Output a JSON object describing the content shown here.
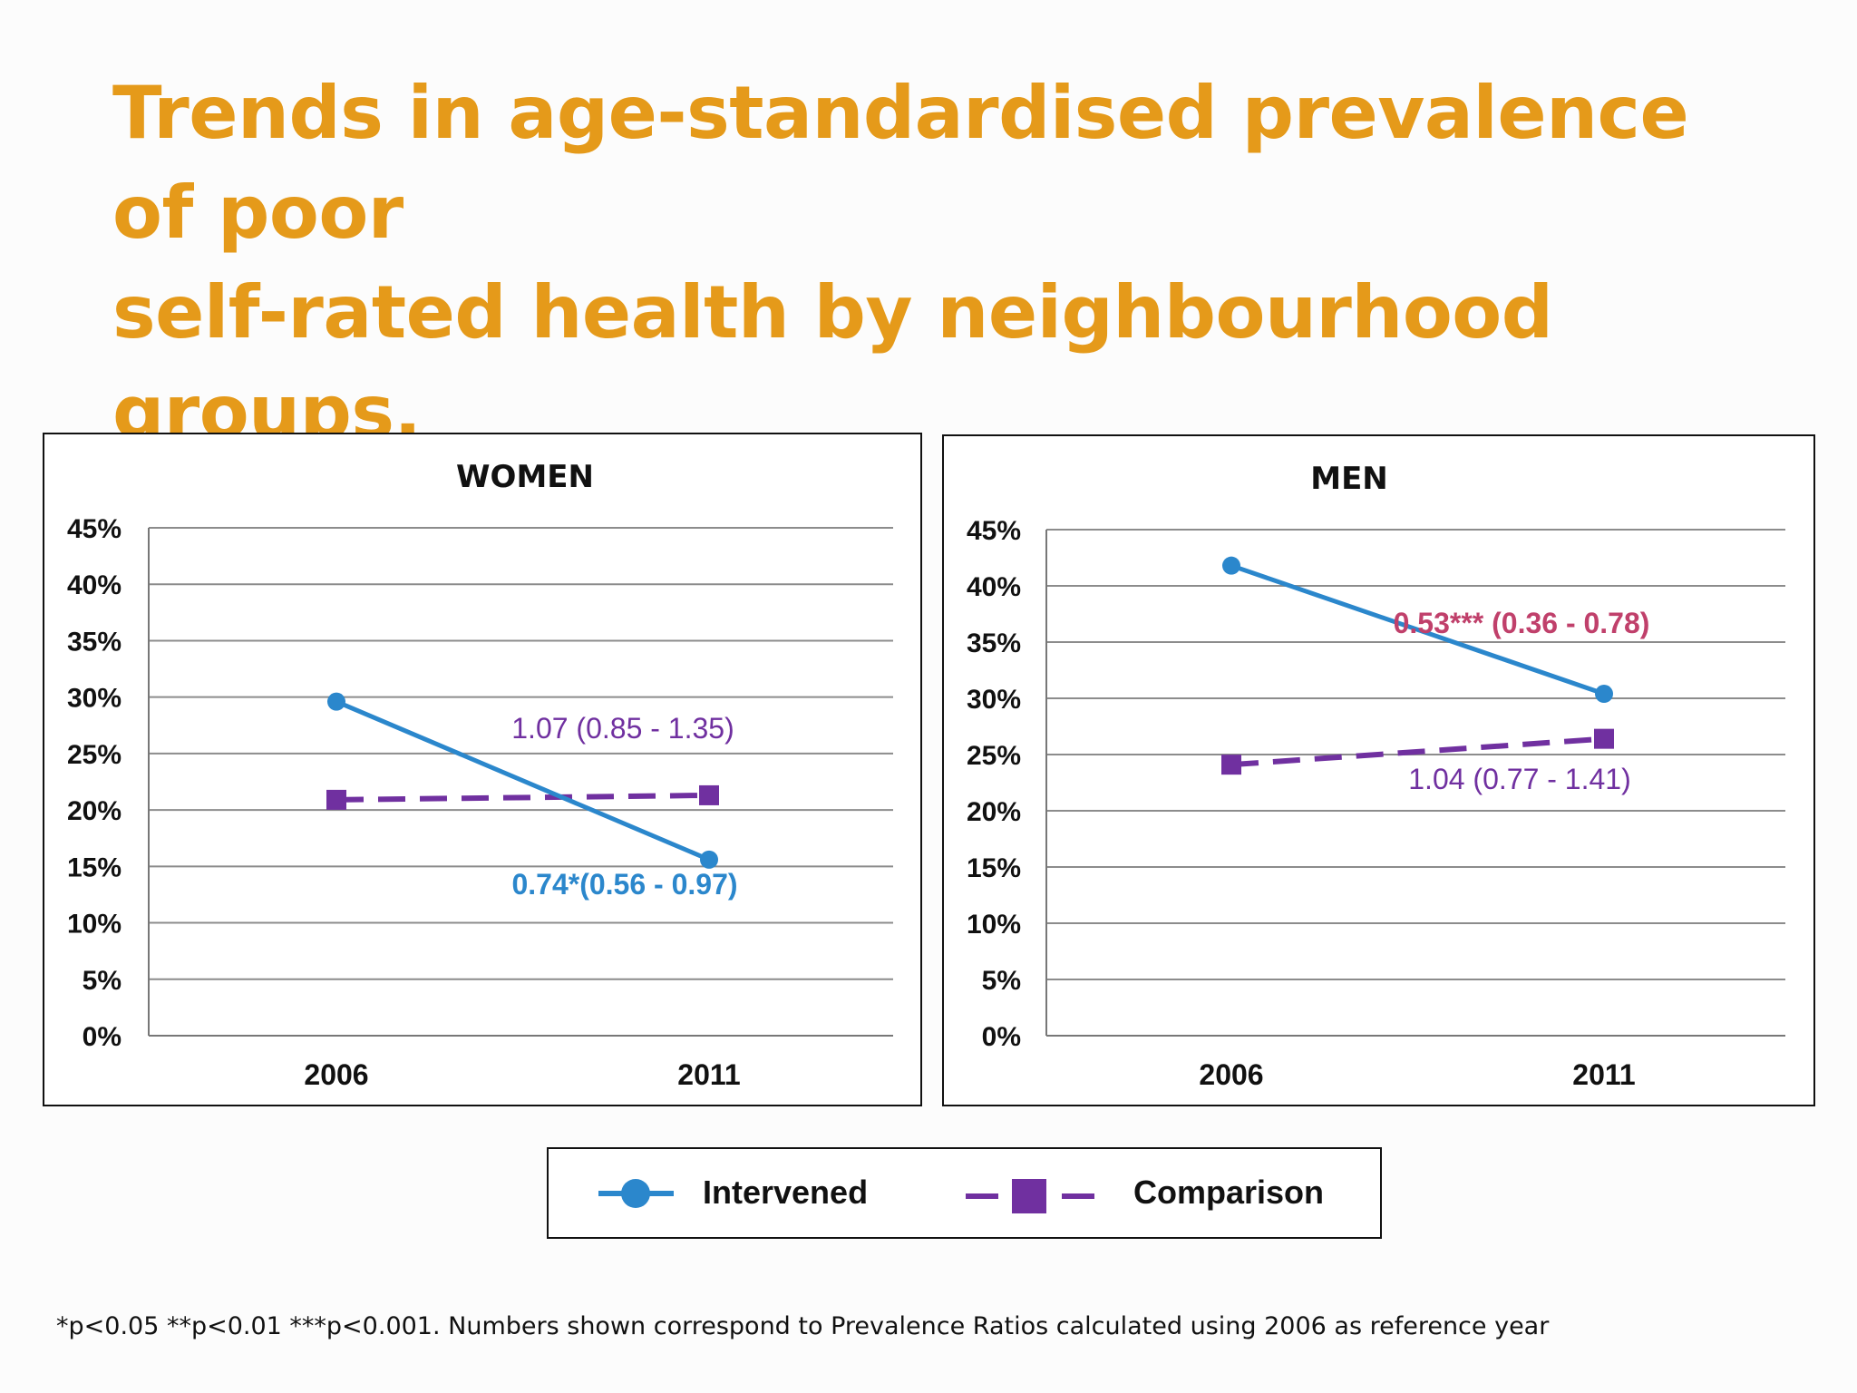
{
  "title": {
    "line1": "Trends in age-standardised prevalence of poor",
    "line2": "self-rated health by neighbourhood groups."
  },
  "colors": {
    "title": "#E59A1A",
    "intervened": "#2B87CC",
    "comparison": "#7030A0",
    "men_intervened_label": "#C0406B",
    "grid": "#8c8c8c"
  },
  "chart_data": [
    {
      "type": "line",
      "title": "WOMEN",
      "categories": [
        "2006",
        "2011"
      ],
      "ylim": [
        0,
        45
      ],
      "yticks": [
        "0%",
        "5%",
        "10%",
        "15%",
        "20%",
        "25%",
        "30%",
        "35%",
        "40%",
        "45%"
      ],
      "grid": true,
      "series": [
        {
          "name": "Intervened",
          "values": [
            29.6,
            15.6
          ],
          "label": "0.74*(0.56 - 0.97)"
        },
        {
          "name": "Comparison",
          "values": [
            20.9,
            21.3
          ],
          "label": "1.07 (0.85 - 1.35)"
        }
      ]
    },
    {
      "type": "line",
      "title": "MEN",
      "categories": [
        "2006",
        "2011"
      ],
      "ylim": [
        0,
        45
      ],
      "yticks": [
        "0%",
        "5%",
        "10%",
        "15%",
        "20%",
        "25%",
        "30%",
        "35%",
        "40%",
        "45%"
      ],
      "grid": true,
      "series": [
        {
          "name": "Intervened",
          "values": [
            41.8,
            30.4
          ],
          "label": "0.53***  (0.36 - 0.78)"
        },
        {
          "name": "Comparison",
          "values": [
            24.1,
            26.4
          ],
          "label": "1.04 (0.77 - 1.41)"
        }
      ]
    }
  ],
  "legend": {
    "intervened": "Intervened",
    "comparison": "Comparison"
  },
  "footnote": "*p<0.05 **p<0.01 ***p<0.001.  Numbers shown correspond to Prevalence Ratios calculated using 2006 as reference year"
}
